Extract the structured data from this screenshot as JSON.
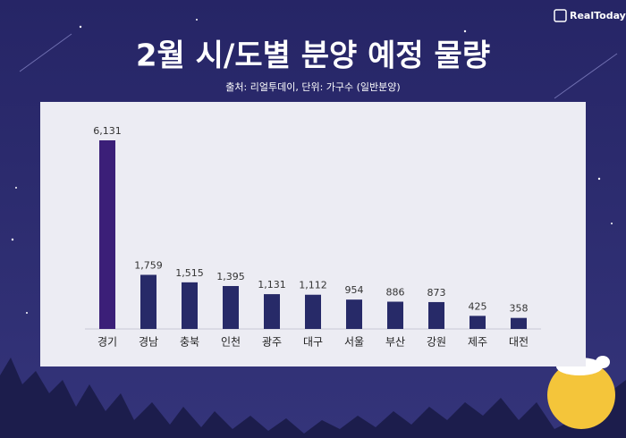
{
  "chart_data": {
    "type": "bar",
    "title": "2월 시/도별 분양 예정 물량",
    "subtitle": "출처: 리얼투데이, 단위: 가구수 (일반분양)",
    "logo": "RealToday",
    "categories": [
      "경기",
      "경남",
      "충북",
      "인천",
      "광주",
      "대구",
      "서울",
      "부산",
      "강원",
      "제주",
      "대전"
    ],
    "values": [
      6131,
      1759,
      1515,
      1395,
      1131,
      1112,
      954,
      886,
      873,
      425,
      358
    ],
    "value_labels": [
      "6,131",
      "1,759",
      "1,515",
      "1,395",
      "1,131",
      "1,112",
      "954",
      "886",
      "873",
      "425",
      "358"
    ],
    "colors": [
      "#3b1f78",
      "#272a68",
      "#272a68",
      "#272a68",
      "#272a68",
      "#272a68",
      "#272a68",
      "#272a68",
      "#272a68",
      "#272a68",
      "#272a68"
    ]
  }
}
